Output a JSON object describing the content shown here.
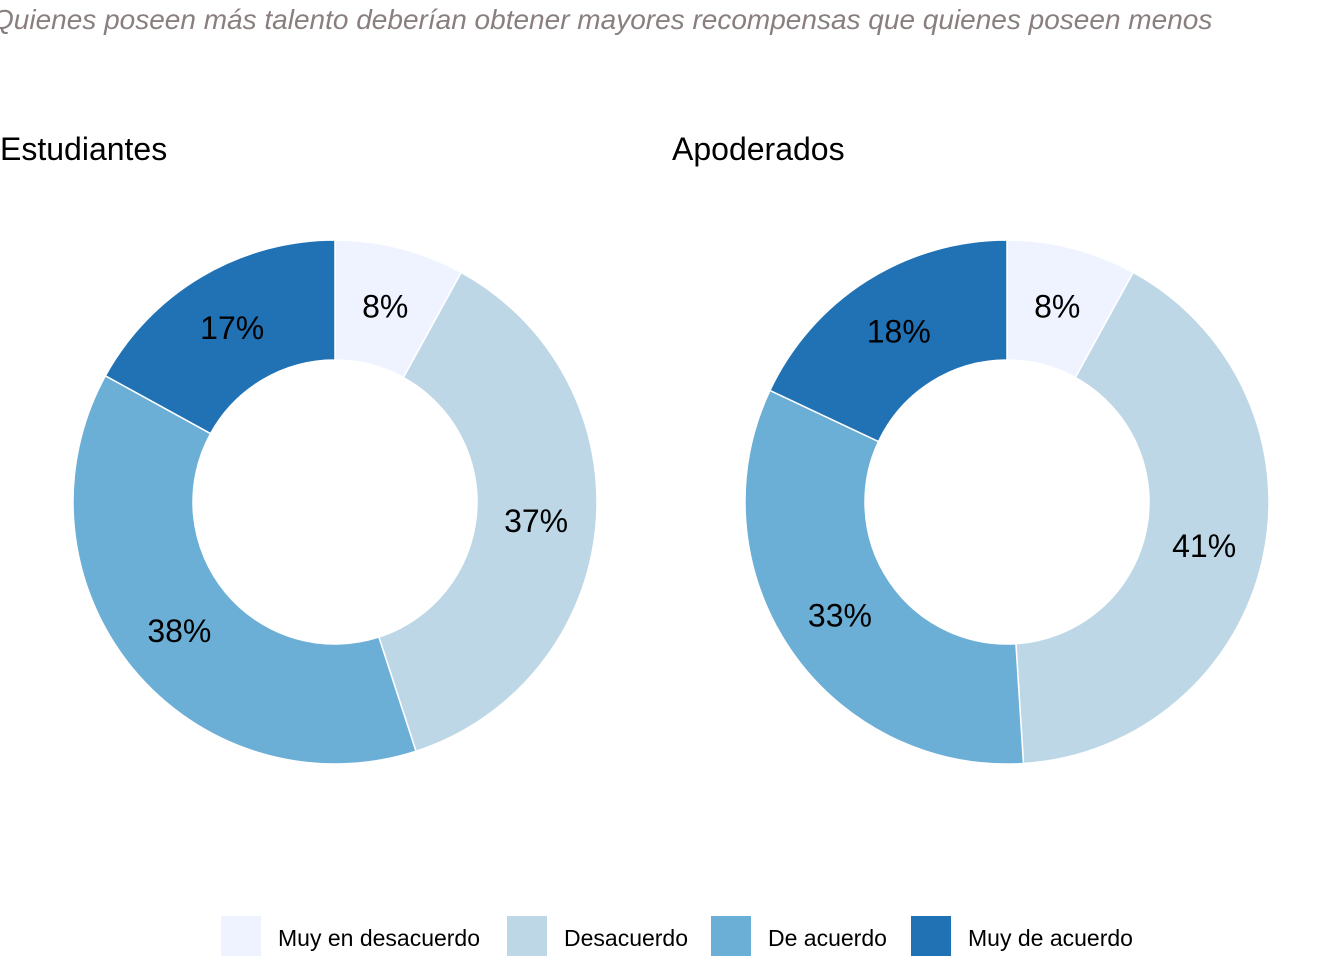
{
  "subtitle": "Quienes poseen más talento deberían obtener mayores recompensas que quienes poseen menos",
  "legend": {
    "labels": [
      "Muy en desacuerdo",
      "Desacuerdo",
      "De acuerdo",
      "Muy de acuerdo"
    ],
    "colors": [
      "#eff3ff",
      "#bdd7e7",
      "#6baed6",
      "#2171b5"
    ]
  },
  "chart_data": [
    {
      "type": "pie",
      "variant": "donut",
      "title": "Estudiantes",
      "categories": [
        "Muy en desacuerdo",
        "Desacuerdo",
        "De acuerdo",
        "Muy de acuerdo"
      ],
      "values": [
        8,
        37,
        38,
        17
      ],
      "labels": [
        "8%",
        "37%",
        "38%",
        "17%"
      ]
    },
    {
      "type": "pie",
      "variant": "donut",
      "title": "Apoderados",
      "categories": [
        "Muy en desacuerdo",
        "Desacuerdo",
        "De acuerdo",
        "Muy de acuerdo"
      ],
      "values": [
        8,
        41,
        33,
        18
      ],
      "labels": [
        "8%",
        "41%",
        "33%",
        "18%"
      ]
    }
  ]
}
